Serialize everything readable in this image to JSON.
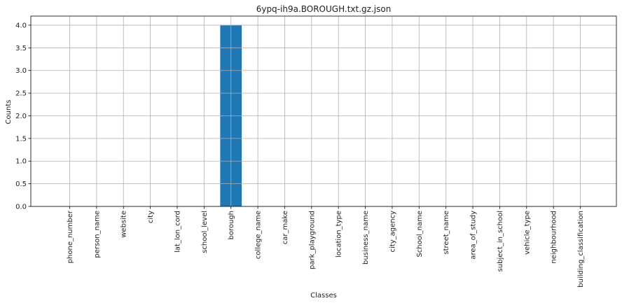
{
  "chart_data": {
    "type": "bar",
    "title": "6ypq-ih9a.BOROUGH.txt.gz.json",
    "xlabel": "Classes",
    "ylabel": "Counts",
    "ylim": [
      0,
      4.2
    ],
    "yticks": [
      "0.0",
      "0.5",
      "1.0",
      "1.5",
      "2.0",
      "2.5",
      "3.0",
      "3.5",
      "4.0"
    ],
    "grid": true,
    "bar_color": "#1f77b4",
    "categories": [
      "phone_number",
      "person_name",
      "website",
      "city",
      "lat_lon_cord",
      "school_level",
      "borough",
      "college_name",
      "car_make",
      "park_playground",
      "location_type",
      "business_name",
      "city_agency",
      "School_name",
      "street_name",
      "area_of_study",
      "subject_in_school",
      "vehicle_type",
      "neighbourhood",
      "building_classification"
    ],
    "values": [
      0,
      0,
      0,
      0,
      0,
      0,
      4,
      0,
      0,
      0,
      0,
      0,
      0,
      0,
      0,
      0,
      0,
      0,
      0,
      0
    ]
  }
}
